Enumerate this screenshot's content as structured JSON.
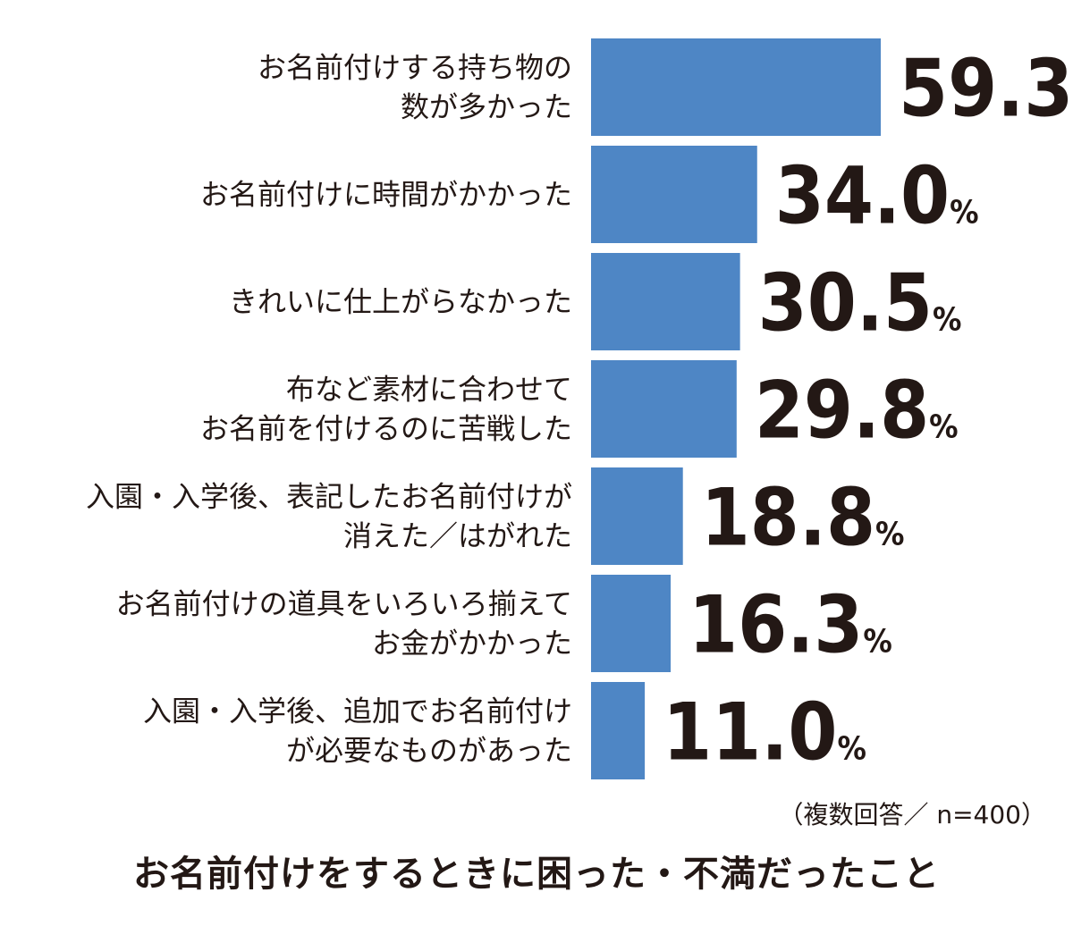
{
  "chart_data": {
    "type": "bar",
    "orientation": "horizontal",
    "categories": [
      [
        "お名前付けする持ち物の",
        "数が多かった"
      ],
      [
        "お名前付けに時間がかかった"
      ],
      [
        "きれいに仕上がらなかった"
      ],
      [
        "布など素材に合わせて",
        "お名前を付けるのに苦戦した"
      ],
      [
        "入園・入学後、表記したお名前付けが",
        "消えた／はがれた"
      ],
      [
        "お名前付けの道具をいろいろ揃えて",
        "お金がかかった"
      ],
      [
        "入園・入学後、追加でお名前付け",
        "が必要なものがあった"
      ]
    ],
    "values": [
      59.3,
      34.0,
      30.5,
      29.8,
      18.8,
      16.3,
      11.0
    ],
    "value_labels": [
      "59.3",
      "34.0",
      "30.5",
      "29.8",
      "18.8",
      "16.3",
      "11.0"
    ],
    "unit": "%",
    "bar_color": "#4e86c5",
    "xlim": [
      0,
      59.3
    ],
    "grid": false
  },
  "note": "（複数回答／ n=400）",
  "title": "お名前付けをするときに困った・不満だったこと"
}
